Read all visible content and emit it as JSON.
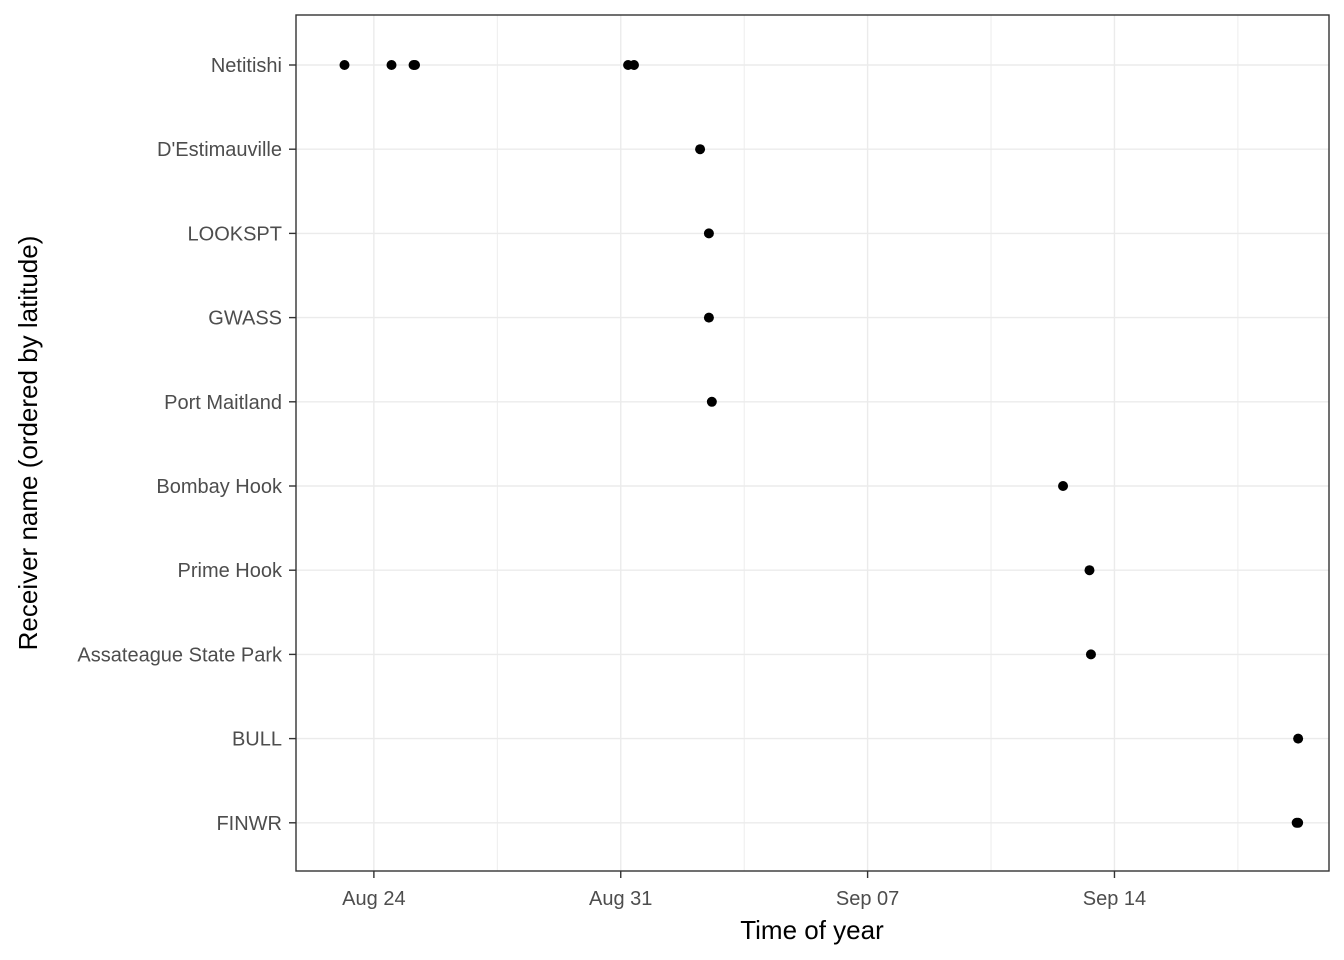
{
  "chart_data": {
    "type": "scatter",
    "title": "",
    "xlabel": "Time of year",
    "ylabel": "Receiver name (ordered by latitude)",
    "x_axis_type": "date",
    "x_ticks": [
      {
        "date": "2016-08-24",
        "label": "Aug 24"
      },
      {
        "date": "2016-08-31",
        "label": "Aug 31"
      },
      {
        "date": "2016-09-07",
        "label": "Sep 07"
      },
      {
        "date": "2016-09-14",
        "label": "Sep 14"
      }
    ],
    "xlim": [
      "2016-08-21T19:00",
      "2016-09-20T02:00"
    ],
    "categories": [
      "Netitishi",
      "D'Estimauville",
      "LOOKSPT",
      "GWASS",
      "Port Maitland",
      "Bombay Hook",
      "Prime Hook",
      "Assateague State Park",
      "BULL",
      "FINWR"
    ],
    "points": [
      {
        "receiver": "Netitishi",
        "x": "2016-08-23T04:00"
      },
      {
        "receiver": "Netitishi",
        "x": "2016-08-24T12:00"
      },
      {
        "receiver": "Netitishi",
        "x": "2016-08-25T03:00"
      },
      {
        "receiver": "Netitishi",
        "x": "2016-08-25T04:00"
      },
      {
        "receiver": "Netitishi",
        "x": "2016-08-31T05:00"
      },
      {
        "receiver": "Netitishi",
        "x": "2016-08-31T09:00"
      },
      {
        "receiver": "D'Estimauville",
        "x": "2016-09-02T06:00"
      },
      {
        "receiver": "LOOKSPT",
        "x": "2016-09-02T12:00"
      },
      {
        "receiver": "GWASS",
        "x": "2016-09-02T12:00"
      },
      {
        "receiver": "Port Maitland",
        "x": "2016-09-02T14:00"
      },
      {
        "receiver": "Bombay Hook",
        "x": "2016-09-12T13:00"
      },
      {
        "receiver": "Prime Hook",
        "x": "2016-09-13T07:00"
      },
      {
        "receiver": "Assateague State Park",
        "x": "2016-09-13T08:00"
      },
      {
        "receiver": "BULL",
        "x": "2016-09-19T05:00"
      },
      {
        "receiver": "FINWR",
        "x": "2016-09-19T04:00"
      },
      {
        "receiver": "FINWR",
        "x": "2016-09-19T05:00"
      }
    ],
    "grid": true,
    "legend": "none",
    "colors": {
      "point": "#000000",
      "grid": "#ebebeb",
      "panel_border": "#333333",
      "tick_label": "#4d4d4d"
    }
  }
}
